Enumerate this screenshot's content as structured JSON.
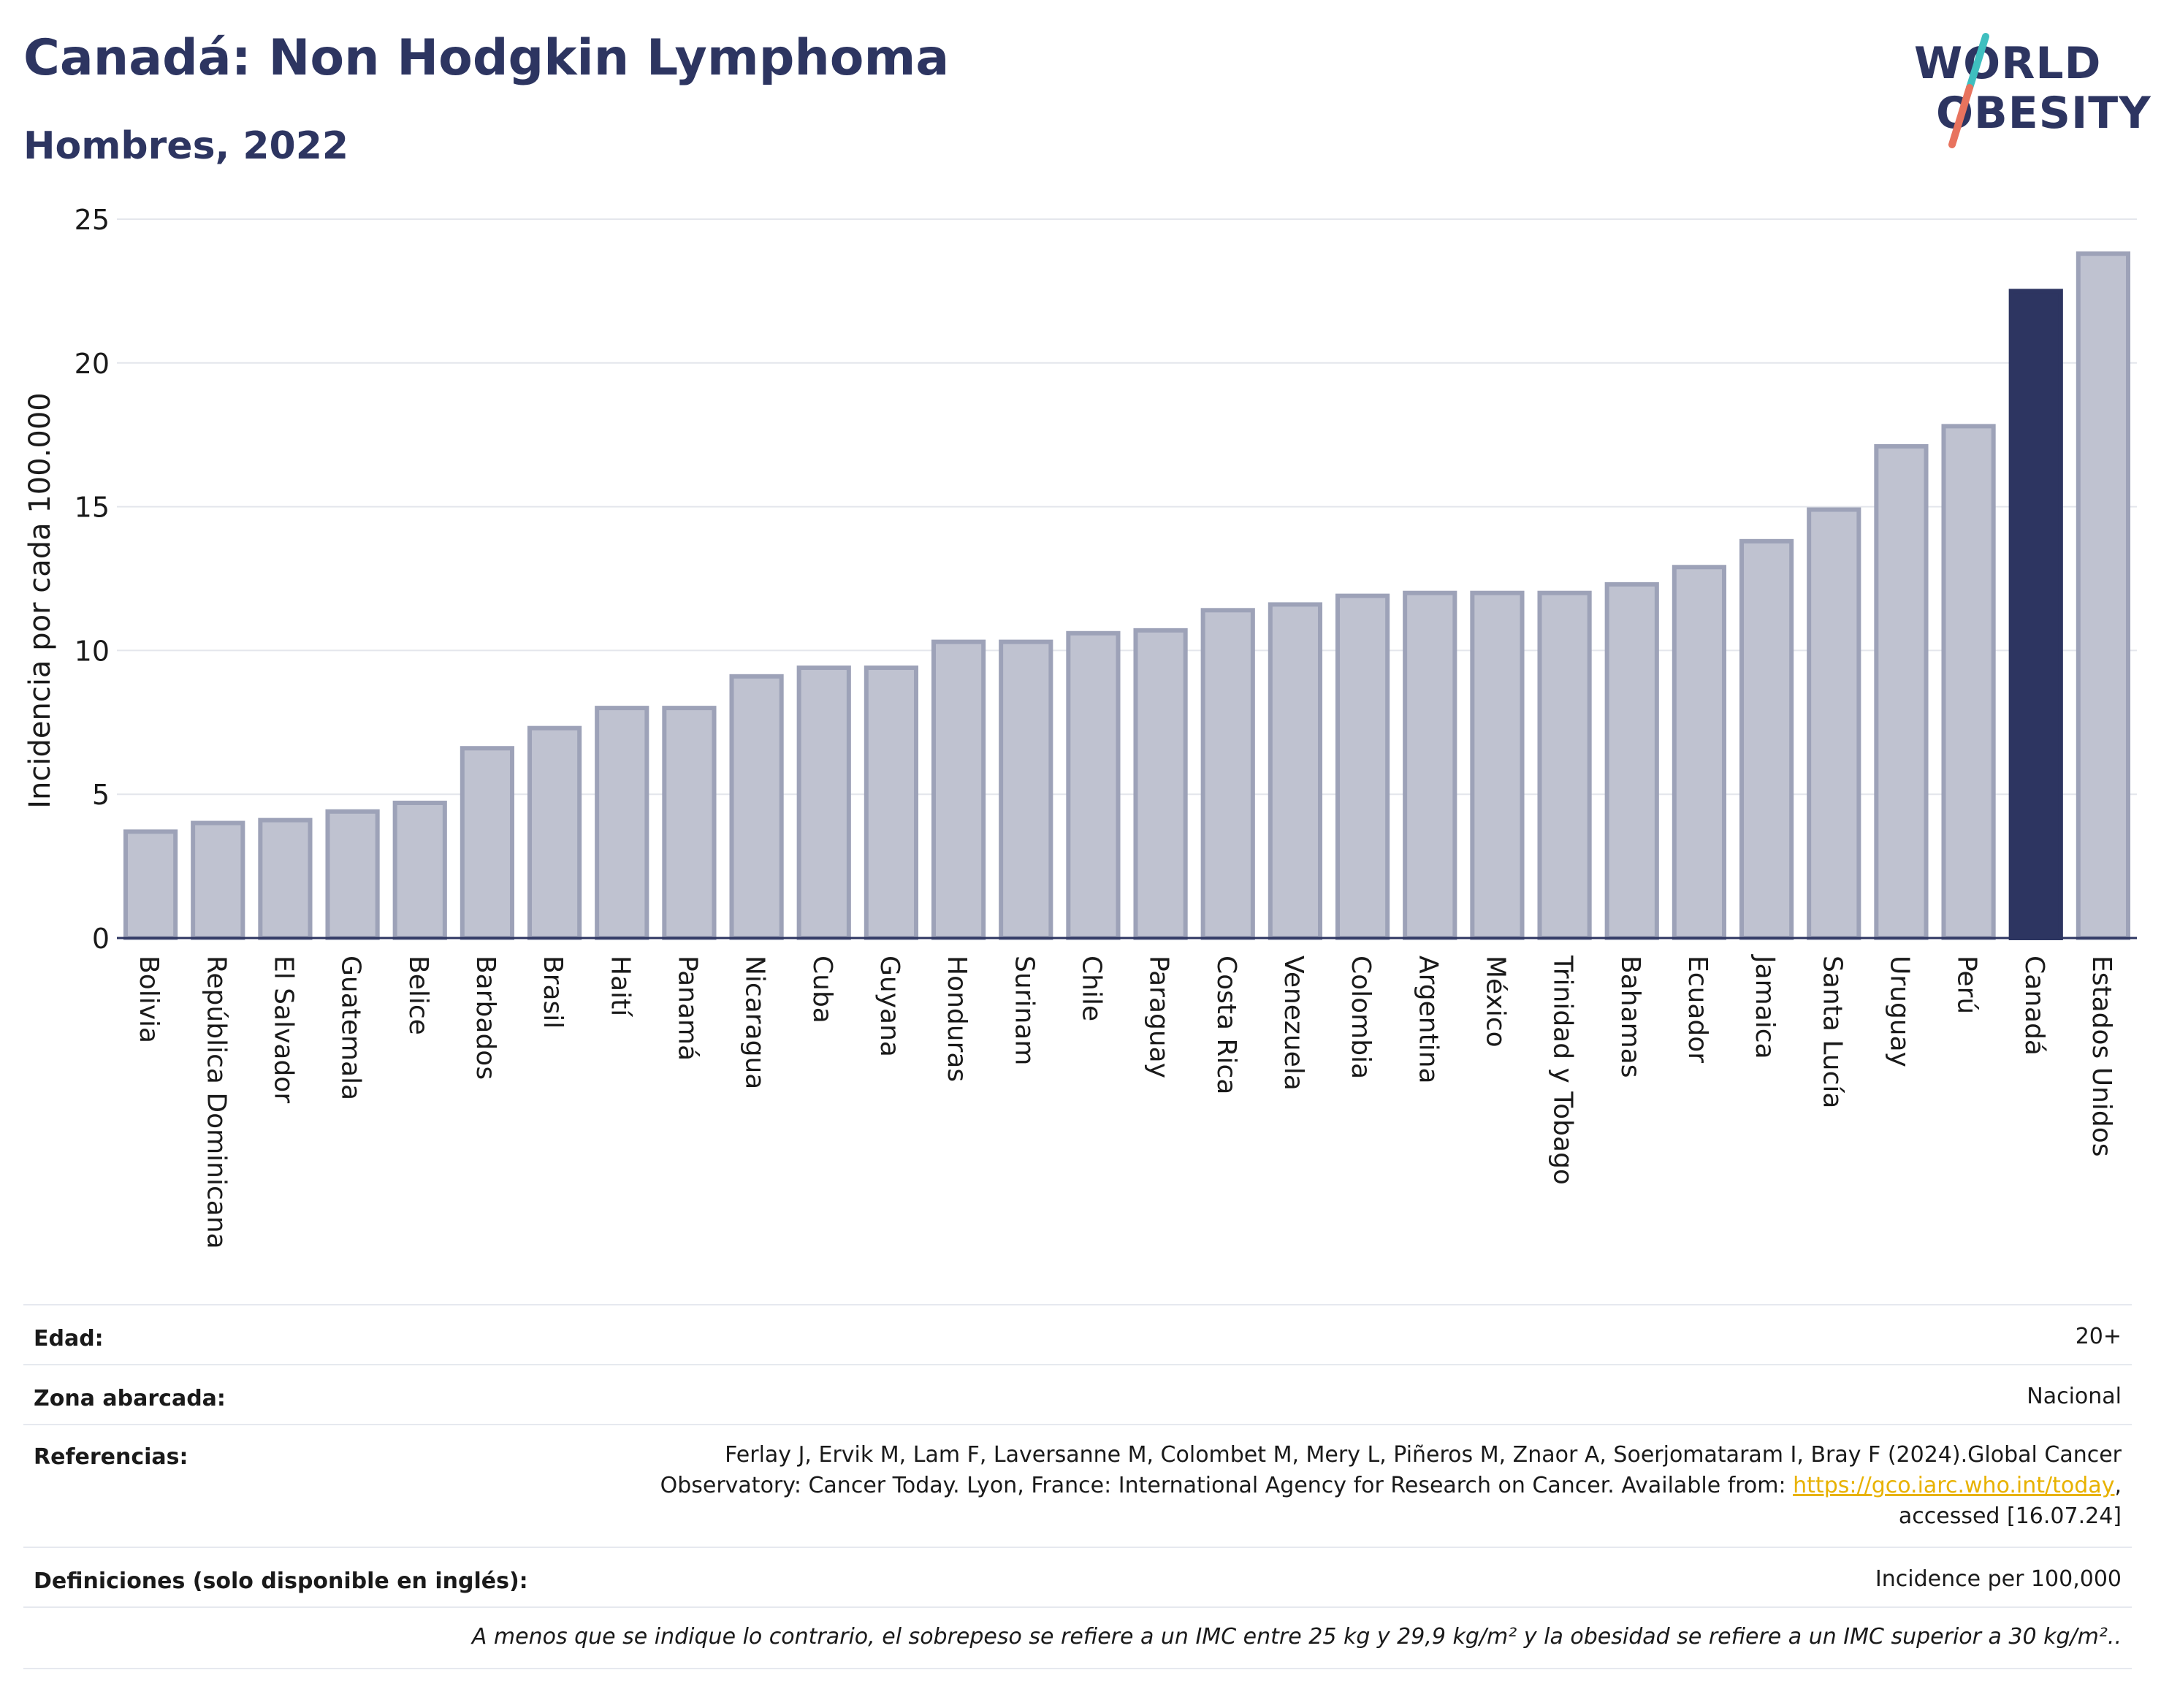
{
  "header": {
    "title": "Canadá: Non Hodgkin Lymphoma",
    "subtitle": "Hombres, 2022",
    "logo_line1": "WORLD",
    "logo_line2": "OBESITY"
  },
  "colors": {
    "title": "#2d3561",
    "bar_default": "#bfc2d0",
    "bar_default_border": "#9da2b8",
    "bar_highlight": "#2d3561",
    "logo_slash_teal": "#3fbfbf",
    "logo_slash_coral": "#e8735e",
    "link": "#e8b200"
  },
  "chart_data": {
    "type": "bar",
    "ylabel": "Incidencia por cada 100.000",
    "xlabel": "",
    "ylim": [
      0,
      25
    ],
    "yticks": [
      0,
      5,
      10,
      15,
      20,
      25
    ],
    "grid": true,
    "highlight": "Canadá",
    "categories": [
      "Bolivia",
      "República Dominicana",
      "El Salvador",
      "Guatemala",
      "Belice",
      "Barbados",
      "Brasil",
      "Haití",
      "Panamá",
      "Nicaragua",
      "Cuba",
      "Guyana",
      "Honduras",
      "Surinam",
      "Chile",
      "Paraguay",
      "Costa Rica",
      "Venezuela",
      "Colombia",
      "Argentina",
      "México",
      "Trinidad y Tobago",
      "Bahamas",
      "Ecuador",
      "Jamaica",
      "Santa Lucía",
      "Uruguay",
      "Perú",
      "Canadá",
      "Estados Unidos"
    ],
    "values": [
      3.7,
      4.0,
      4.1,
      4.4,
      4.7,
      6.6,
      7.3,
      8.0,
      8.0,
      9.1,
      9.4,
      9.4,
      10.3,
      10.3,
      10.6,
      10.7,
      11.4,
      11.6,
      11.9,
      12.0,
      12.0,
      12.0,
      12.3,
      12.9,
      13.8,
      14.9,
      17.1,
      17.8,
      22.5,
      23.8
    ]
  },
  "meta": {
    "edad_label": "Edad:",
    "edad_value": "20+",
    "zona_label": "Zona abarcada:",
    "zona_value": "Nacional",
    "ref_label": "Referencias:",
    "ref_line1": "Ferlay J, Ervik M, Lam F, Laversanne M, Colombet M, Mery L, Piñeros M, Znaor A, Soerjomataram I, Bray F (2024).Global Cancer",
    "ref_line2_pre": "Observatory: Cancer Today. Lyon, France: International Agency for Research on Cancer. Available from: ",
    "ref_link": "https://gco.iarc.who.int/today",
    "ref_line2_post": ",",
    "ref_line3": "accessed [16.07.24]",
    "def_label": "Definiciones (solo disponible en inglés):",
    "def_value": "Incidence per 100,000",
    "note": "A menos que se indique lo contrario, el sobrepeso se refiere a un IMC entre 25 kg y 29,9 kg/m² y la obesidad se refiere a un IMC superior a 30 kg/m².."
  }
}
